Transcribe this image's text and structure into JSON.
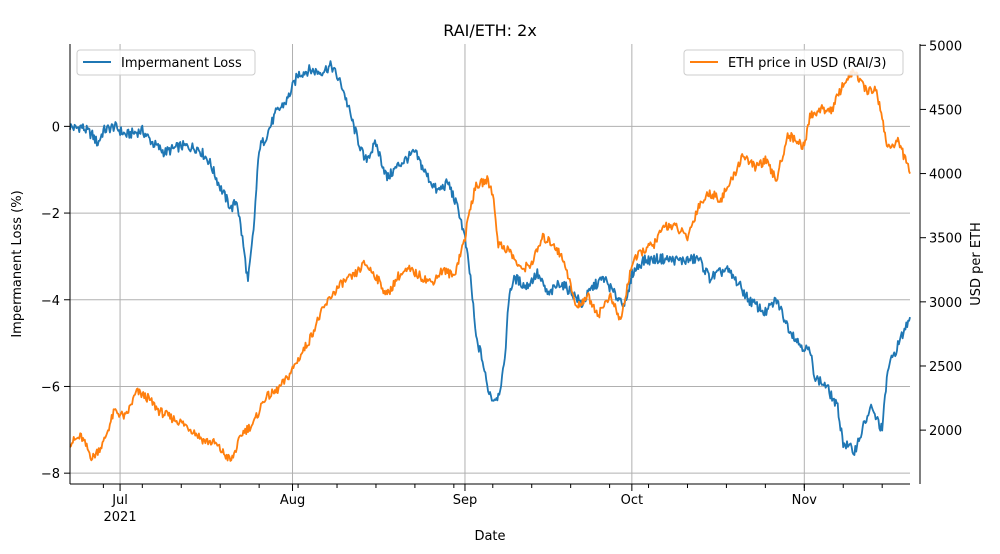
{
  "chart_data": {
    "type": "line",
    "title": "RAI/ETH: 2x",
    "xlabel": "Date",
    "ylabel_left": "Impermanent Loss (%)",
    "ylabel_right": "USD per ETH",
    "x_ticks": [
      {
        "date": "2021-07-01",
        "label": "Jul",
        "sublabel": "2021"
      },
      {
        "date": "2021-08-01",
        "label": "Aug",
        "sublabel": ""
      },
      {
        "date": "2021-09-01",
        "label": "Sep",
        "sublabel": ""
      },
      {
        "date": "2021-10-01",
        "label": "Oct",
        "sublabel": ""
      },
      {
        "date": "2021-11-01",
        "label": "Nov",
        "sublabel": ""
      }
    ],
    "xlim": [
      "2021-06-22",
      "2021-11-20"
    ],
    "ylim_left": [
      -8.25,
      1.9
    ],
    "ylim_right": [
      1580,
      5010
    ],
    "y_ticks_left": [
      0,
      -2,
      -4,
      -6,
      -8
    ],
    "y_tick_labels_left": [
      "0",
      "−2",
      "−4",
      "−6",
      "−8"
    ],
    "y_ticks_right": [
      2000,
      2500,
      3000,
      3500,
      4000,
      4500,
      5000
    ],
    "y_tick_labels_right": [
      "2000",
      "2500",
      "3000",
      "3500",
      "4000",
      "4500",
      "5000"
    ],
    "grid": true,
    "series": [
      {
        "name": "Impermanent Loss",
        "axis": "left",
        "color": "#1f77b4",
        "legend_position": "top-left",
        "points": [
          [
            "2021-06-22",
            0.0
          ],
          [
            "2021-06-23",
            -0.05
          ],
          [
            "2021-06-24",
            0.0
          ],
          [
            "2021-06-26",
            -0.2
          ],
          [
            "2021-06-27",
            -0.4
          ],
          [
            "2021-06-28",
            -0.1
          ],
          [
            "2021-06-30",
            0.0
          ],
          [
            "2021-07-02",
            -0.2
          ],
          [
            "2021-07-05",
            -0.1
          ],
          [
            "2021-07-07",
            -0.4
          ],
          [
            "2021-07-09",
            -0.6
          ],
          [
            "2021-07-12",
            -0.45
          ],
          [
            "2021-07-15",
            -0.5
          ],
          [
            "2021-07-17",
            -0.8
          ],
          [
            "2021-07-19",
            -1.4
          ],
          [
            "2021-07-21",
            -1.9
          ],
          [
            "2021-07-22",
            -1.7
          ],
          [
            "2021-07-23",
            -2.6
          ],
          [
            "2021-07-24",
            -3.6
          ],
          [
            "2021-07-25",
            -2.4
          ],
          [
            "2021-07-26",
            -0.5
          ],
          [
            "2021-07-27",
            -0.3
          ],
          [
            "2021-07-29",
            0.3
          ],
          [
            "2021-07-31",
            0.6
          ],
          [
            "2021-08-02",
            1.2
          ],
          [
            "2021-08-04",
            1.3
          ],
          [
            "2021-08-06",
            1.25
          ],
          [
            "2021-08-08",
            1.4
          ],
          [
            "2021-08-10",
            0.9
          ],
          [
            "2021-08-12",
            0.0
          ],
          [
            "2021-08-14",
            -0.8
          ],
          [
            "2021-08-16",
            -0.4
          ],
          [
            "2021-08-18",
            -1.2
          ],
          [
            "2021-08-20",
            -0.9
          ],
          [
            "2021-08-23",
            -0.6
          ],
          [
            "2021-08-25",
            -1.1
          ],
          [
            "2021-08-27",
            -1.5
          ],
          [
            "2021-08-29",
            -1.3
          ],
          [
            "2021-08-31",
            -2.0
          ],
          [
            "2021-09-01",
            -2.6
          ],
          [
            "2021-09-02",
            -3.5
          ],
          [
            "2021-09-03",
            -4.9
          ],
          [
            "2021-09-04",
            -5.3
          ],
          [
            "2021-09-05",
            -6.0
          ],
          [
            "2021-09-06",
            -6.3
          ],
          [
            "2021-09-07",
            -6.2
          ],
          [
            "2021-09-08",
            -5.6
          ],
          [
            "2021-09-09",
            -3.8
          ],
          [
            "2021-09-10",
            -3.5
          ],
          [
            "2021-09-12",
            -3.7
          ],
          [
            "2021-09-14",
            -3.4
          ],
          [
            "2021-09-16",
            -3.9
          ],
          [
            "2021-09-18",
            -3.6
          ],
          [
            "2021-09-20",
            -3.8
          ],
          [
            "2021-09-22",
            -4.1
          ],
          [
            "2021-09-24",
            -3.7
          ],
          [
            "2021-09-26",
            -3.5
          ],
          [
            "2021-09-28",
            -3.9
          ],
          [
            "2021-09-30",
            -4.1
          ],
          [
            "2021-10-01",
            -3.4
          ],
          [
            "2021-10-03",
            -3.1
          ],
          [
            "2021-10-06",
            -3.05
          ],
          [
            "2021-10-10",
            -3.1
          ],
          [
            "2021-10-13",
            -3.05
          ],
          [
            "2021-10-15",
            -3.5
          ],
          [
            "2021-10-18",
            -3.3
          ],
          [
            "2021-10-20",
            -3.6
          ],
          [
            "2021-10-22",
            -4.0
          ],
          [
            "2021-10-25",
            -4.3
          ],
          [
            "2021-10-27",
            -4.0
          ],
          [
            "2021-10-29",
            -4.6
          ],
          [
            "2021-10-31",
            -5.0
          ],
          [
            "2021-11-02",
            -5.2
          ],
          [
            "2021-11-03",
            -5.8
          ],
          [
            "2021-11-05",
            -6.0
          ],
          [
            "2021-11-07",
            -6.5
          ],
          [
            "2021-11-08",
            -7.3
          ],
          [
            "2021-11-10",
            -7.5
          ],
          [
            "2021-11-12",
            -6.8
          ],
          [
            "2021-11-13",
            -6.5
          ],
          [
            "2021-11-15",
            -7.0
          ],
          [
            "2021-11-16",
            -5.6
          ],
          [
            "2021-11-18",
            -5.0
          ],
          [
            "2021-11-20",
            -4.4
          ]
        ]
      },
      {
        "name": "ETH price in USD (RAI/3)",
        "axis": "right",
        "color": "#ff7f0e",
        "legend_position": "top-right",
        "points": [
          [
            "2021-06-22",
            1900
          ],
          [
            "2021-06-24",
            1950
          ],
          [
            "2021-06-26",
            1780
          ],
          [
            "2021-06-28",
            1900
          ],
          [
            "2021-06-30",
            2150
          ],
          [
            "2021-07-02",
            2100
          ],
          [
            "2021-07-04",
            2300
          ],
          [
            "2021-07-06",
            2250
          ],
          [
            "2021-07-08",
            2150
          ],
          [
            "2021-07-10",
            2100
          ],
          [
            "2021-07-12",
            2060
          ],
          [
            "2021-07-14",
            2000
          ],
          [
            "2021-07-16",
            1920
          ],
          [
            "2021-07-18",
            1900
          ],
          [
            "2021-07-20",
            1800
          ],
          [
            "2021-07-21",
            1760
          ],
          [
            "2021-07-23",
            1980
          ],
          [
            "2021-07-25",
            2050
          ],
          [
            "2021-07-27",
            2250
          ],
          [
            "2021-07-29",
            2300
          ],
          [
            "2021-07-31",
            2400
          ],
          [
            "2021-08-02",
            2550
          ],
          [
            "2021-08-04",
            2700
          ],
          [
            "2021-08-06",
            2900
          ],
          [
            "2021-08-08",
            3050
          ],
          [
            "2021-08-10",
            3150
          ],
          [
            "2021-08-12",
            3200
          ],
          [
            "2021-08-14",
            3300
          ],
          [
            "2021-08-16",
            3200
          ],
          [
            "2021-08-18",
            3050
          ],
          [
            "2021-08-20",
            3200
          ],
          [
            "2021-08-22",
            3250
          ],
          [
            "2021-08-24",
            3200
          ],
          [
            "2021-08-26",
            3150
          ],
          [
            "2021-08-28",
            3250
          ],
          [
            "2021-08-30",
            3200
          ],
          [
            "2021-09-01",
            3500
          ],
          [
            "2021-09-02",
            3750
          ],
          [
            "2021-09-03",
            3900
          ],
          [
            "2021-09-05",
            3950
          ],
          [
            "2021-09-06",
            3850
          ],
          [
            "2021-09-07",
            3450
          ],
          [
            "2021-09-09",
            3400
          ],
          [
            "2021-09-11",
            3250
          ],
          [
            "2021-09-13",
            3300
          ],
          [
            "2021-09-15",
            3500
          ],
          [
            "2021-09-17",
            3450
          ],
          [
            "2021-09-19",
            3300
          ],
          [
            "2021-09-21",
            2950
          ],
          [
            "2021-09-23",
            3050
          ],
          [
            "2021-09-25",
            2900
          ],
          [
            "2021-09-27",
            3050
          ],
          [
            "2021-09-29",
            2850
          ],
          [
            "2021-10-01",
            3300
          ],
          [
            "2021-10-03",
            3400
          ],
          [
            "2021-10-05",
            3450
          ],
          [
            "2021-10-07",
            3600
          ],
          [
            "2021-10-09",
            3580
          ],
          [
            "2021-10-11",
            3500
          ],
          [
            "2021-10-13",
            3750
          ],
          [
            "2021-10-15",
            3850
          ],
          [
            "2021-10-17",
            3800
          ],
          [
            "2021-10-19",
            3950
          ],
          [
            "2021-10-21",
            4150
          ],
          [
            "2021-10-23",
            4050
          ],
          [
            "2021-10-25",
            4100
          ],
          [
            "2021-10-27",
            3950
          ],
          [
            "2021-10-29",
            4300
          ],
          [
            "2021-10-31",
            4250
          ],
          [
            "2021-11-01",
            4200
          ],
          [
            "2021-11-02",
            4450
          ],
          [
            "2021-11-04",
            4500
          ],
          [
            "2021-11-06",
            4500
          ],
          [
            "2021-11-08",
            4700
          ],
          [
            "2021-11-10",
            4800
          ],
          [
            "2021-11-12",
            4650
          ],
          [
            "2021-11-14",
            4650
          ],
          [
            "2021-11-16",
            4200
          ],
          [
            "2021-11-18",
            4250
          ],
          [
            "2021-11-20",
            4000
          ]
        ]
      }
    ]
  }
}
